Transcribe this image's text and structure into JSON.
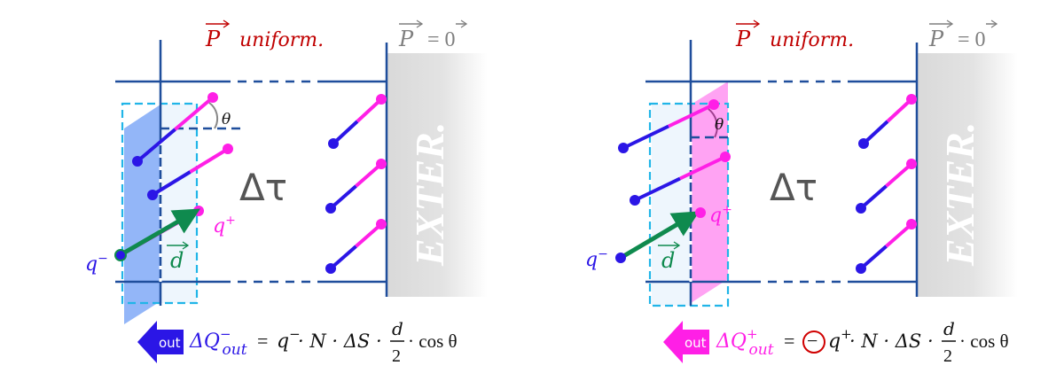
{
  "colors": {
    "frame": "#1f4e9c",
    "negative": "#2b16e6",
    "positive": "#ff1fe6",
    "dipole_vector": "#0f8a4e",
    "polarization_label": "#c00000",
    "zero_label": "#7f7f7f",
    "exterior": "#d9d9d9",
    "volume_label": "#555555",
    "dashed_box": "#21b5e8",
    "negative_slab": "#6f9ef5",
    "positive_slab": "#ff8cf0",
    "circle_highlight": "#d00000"
  },
  "panels": [
    {
      "polarization_label": "P",
      "uniform_label": "uniform.",
      "zero_label_lhs": "P",
      "zero_label_rhs": "= 0",
      "volume_label": "Δτ",
      "exterior_label": "EXTER.",
      "theta_label": "θ",
      "q_plus_label": "q",
      "q_plus_sup": "+",
      "q_minus_label": "q",
      "q_minus_sup": "−",
      "d_label": "d",
      "out_badge": "out",
      "out_badge_color": "negative",
      "formula": {
        "lhs": "ΔQ",
        "lhs_sup": "−",
        "lhs_sub": "out",
        "equals": "=",
        "circled_sign": "",
        "charge": "q",
        "charge_sup": "−",
        "rest": "· N · ΔS ·",
        "frac_num": "d",
        "frac_den": "2",
        "tail": "· cos θ"
      }
    },
    {
      "polarization_label": "P",
      "uniform_label": "uniform.",
      "zero_label_lhs": "P",
      "zero_label_rhs": "= 0",
      "volume_label": "Δτ",
      "exterior_label": "EXTER.",
      "theta_label": "θ",
      "q_plus_label": "q",
      "q_plus_sup": "+",
      "q_minus_label": "q",
      "q_minus_sup": "−",
      "d_label": "d",
      "out_badge": "out",
      "out_badge_color": "positive",
      "formula": {
        "lhs": "ΔQ",
        "lhs_sup": "+",
        "lhs_sub": "out",
        "equals": "=",
        "circled_sign": "−",
        "charge": "q",
        "charge_sup": "+",
        "rest": "· N · ΔS ·",
        "frac_num": "d",
        "frac_den": "2",
        "tail": "· cos θ"
      }
    }
  ]
}
